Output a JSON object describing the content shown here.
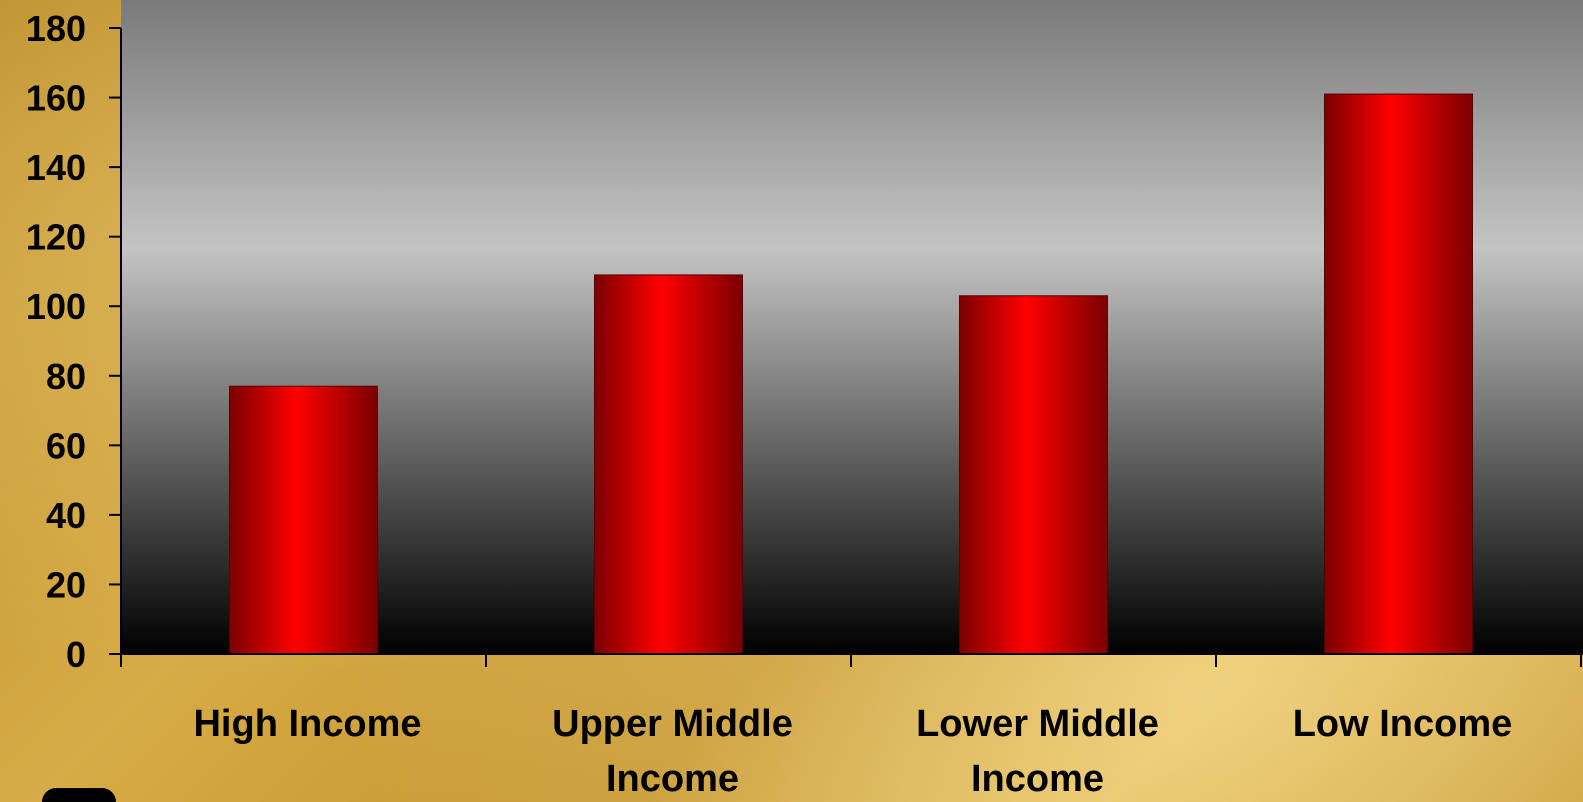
{
  "colors": {
    "bar": "#ff0000",
    "bar_edge": "#7a0000",
    "plot_top": "#7a7a7a",
    "plot_mid": "#c4c4c4",
    "plot_bottom": "#000000"
  },
  "chart_data": {
    "type": "bar",
    "categories": [
      [
        "High Income"
      ],
      [
        "Upper Middle",
        "Income"
      ],
      [
        "Lower Middle",
        "Income"
      ],
      [
        "Low Income"
      ]
    ],
    "values": [
      77,
      109,
      103,
      161
    ],
    "ylim": [
      0,
      180
    ],
    "yticks": [
      0,
      20,
      40,
      60,
      80,
      100,
      120,
      140,
      160,
      180
    ],
    "title": "",
    "xlabel": "",
    "ylabel": "",
    "grid": false,
    "legend": "none"
  }
}
